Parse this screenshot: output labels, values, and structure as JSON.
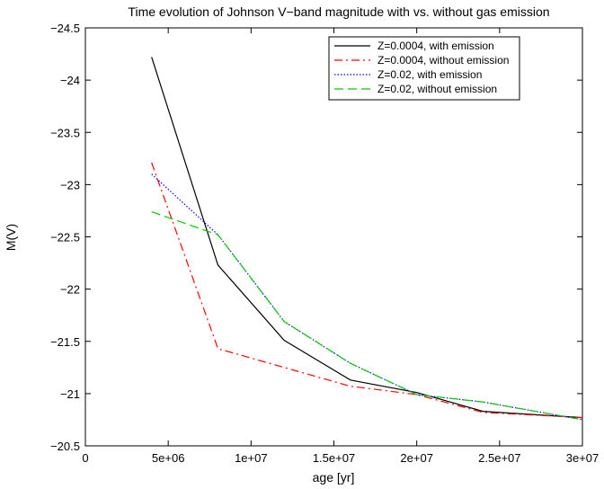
{
  "chart_data": {
    "type": "line",
    "title": "Time evolution of Johnson V−band magnitude with vs. without gas emission",
    "xlabel": "age [yr]",
    "ylabel": "M(V)",
    "xlim": [
      0,
      30000000
    ],
    "ylim": [
      -20.5,
      -24.5
    ],
    "y_inverted": true,
    "x_ticks": [
      {
        "value": 0,
        "label": "0"
      },
      {
        "value": 5000000,
        "label": "5e+06"
      },
      {
        "value": 10000000,
        "label": "1e+07"
      },
      {
        "value": 15000000,
        "label": "1.5e+07"
      },
      {
        "value": 20000000,
        "label": "2e+07"
      },
      {
        "value": 25000000,
        "label": "2.5e+07"
      },
      {
        "value": 30000000,
        "label": "3e+07"
      }
    ],
    "y_ticks": [
      {
        "value": -24.5,
        "label": "−24.5"
      },
      {
        "value": -24,
        "label": "−24"
      },
      {
        "value": -23.5,
        "label": "−23.5"
      },
      {
        "value": -23,
        "label": "−23"
      },
      {
        "value": -22.5,
        "label": "−22.5"
      },
      {
        "value": -22,
        "label": "−22"
      },
      {
        "value": -21.5,
        "label": "−21.5"
      },
      {
        "value": -21,
        "label": "−21"
      },
      {
        "value": -20.5,
        "label": "−20.5"
      }
    ],
    "grid": false,
    "legend_position": "top-right",
    "series": [
      {
        "name": "Z=0.0004, with emission",
        "color": "#000000",
        "dash": "solid",
        "x": [
          4000000,
          8000000,
          12000000,
          16000000,
          20000000,
          24000000,
          30000000
        ],
        "y": [
          -24.22,
          -22.23,
          -21.51,
          -21.13,
          -21.01,
          -20.83,
          -20.77
        ]
      },
      {
        "name": "Z=0.0004, without emission",
        "color": "#ff0000",
        "dash": "dashdot",
        "x": [
          4000000,
          8000000,
          12000000,
          16000000,
          20000000,
          24000000,
          30000000
        ],
        "y": [
          -23.21,
          -21.43,
          -21.25,
          -21.07,
          -20.99,
          -20.82,
          -20.77
        ]
      },
      {
        "name": "Z=0.02, with emission",
        "color": "#0000ff",
        "dash": "dotted",
        "x": [
          4000000,
          8000000,
          12000000,
          16000000,
          20000000,
          24000000,
          30000000
        ],
        "y": [
          -23.1,
          -22.52,
          -21.69,
          -21.29,
          -20.99,
          -20.92,
          -20.75
        ]
      },
      {
        "name": "Z=0.02, without emission",
        "color": "#00cc00",
        "dash": "dashed",
        "x": [
          4000000,
          8000000,
          12000000,
          16000000,
          20000000,
          24000000,
          30000000
        ],
        "y": [
          -22.74,
          -22.52,
          -21.69,
          -21.29,
          -20.99,
          -20.92,
          -20.75
        ]
      }
    ]
  }
}
